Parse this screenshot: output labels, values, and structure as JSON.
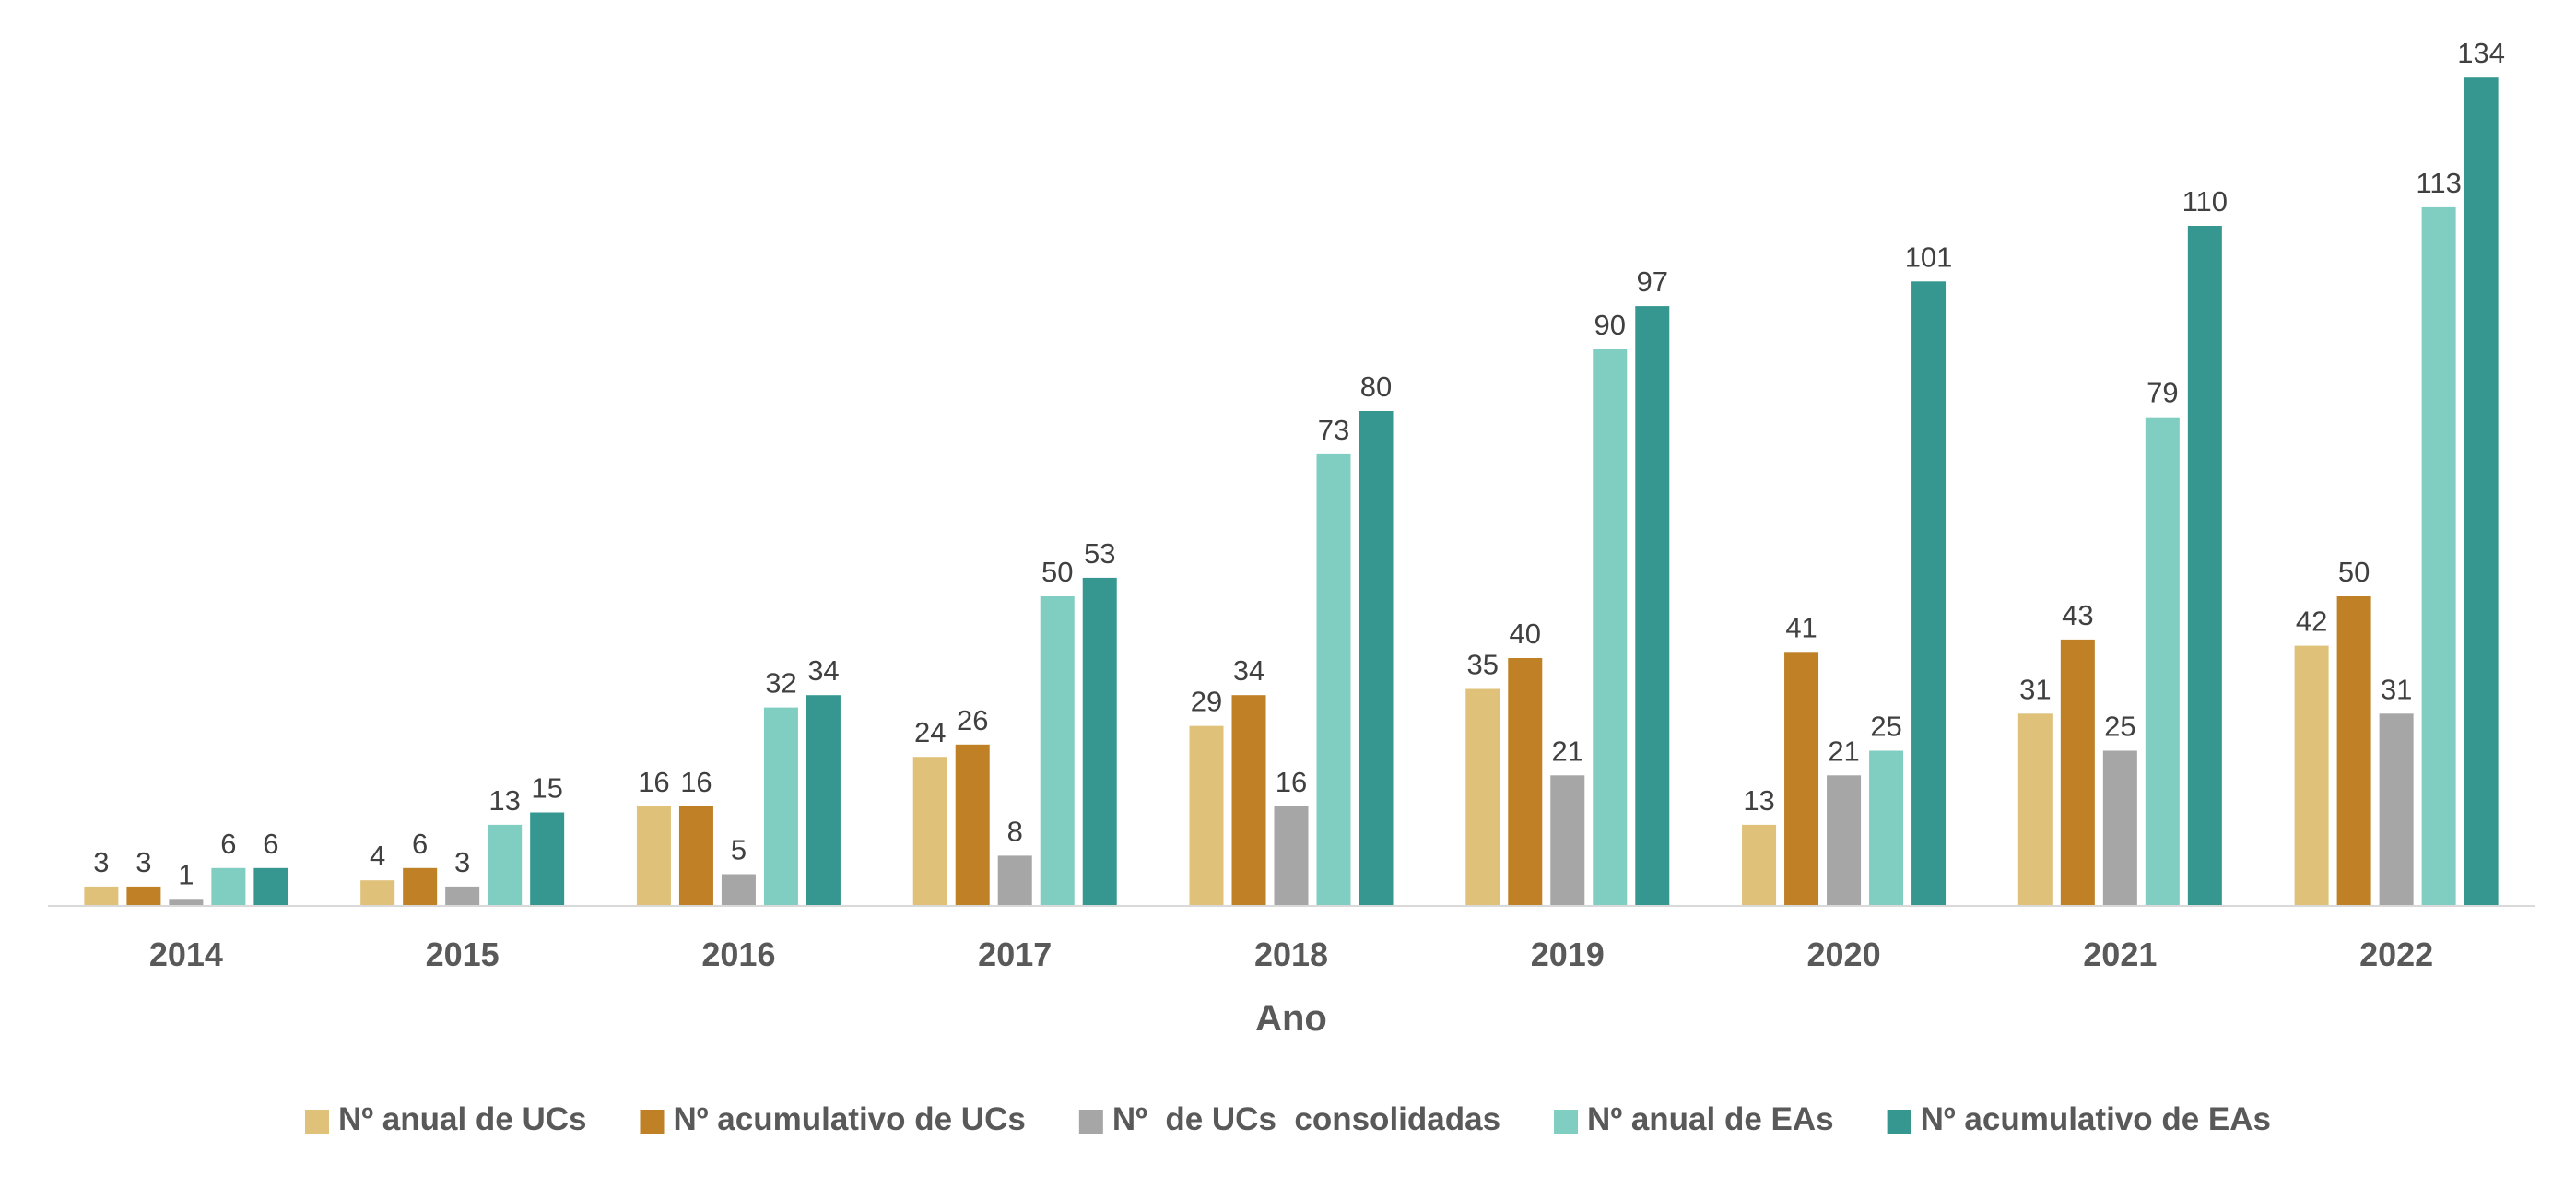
{
  "chart_data": {
    "type": "bar",
    "xlabel": "Ano",
    "ylabel": "",
    "title": "",
    "ylim": [
      0,
      140
    ],
    "grid": false,
    "legend_position": "bottom",
    "categories": [
      "2014",
      "2015",
      "2016",
      "2017",
      "2018",
      "2019",
      "2020",
      "2021",
      "2022"
    ],
    "series": [
      {
        "name": "Nº anual de UCs",
        "color": "#DFC17A",
        "values": [
          3,
          4,
          16,
          24,
          29,
          35,
          13,
          31,
          42
        ]
      },
      {
        "name": "Nº acumulativo de UCs",
        "color": "#BF8026",
        "values": [
          3,
          6,
          16,
          26,
          34,
          40,
          41,
          43,
          50
        ]
      },
      {
        "name": "Nº  de UCs  consolidadas",
        "color": "#A6A6A6",
        "values": [
          1,
          3,
          5,
          8,
          16,
          21,
          21,
          25,
          31
        ]
      },
      {
        "name": "Nº anual de EAs",
        "color": "#80CDC1",
        "values": [
          6,
          13,
          32,
          50,
          73,
          90,
          25,
          79,
          113
        ]
      },
      {
        "name": "Nº acumulativo de EAs",
        "color": "#35978F",
        "values": [
          6,
          15,
          34,
          53,
          80,
          97,
          101,
          110,
          134
        ]
      }
    ]
  }
}
